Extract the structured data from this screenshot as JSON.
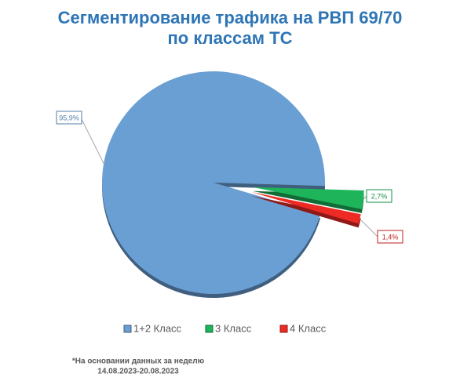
{
  "chart_data": {
    "type": "pie",
    "title": [
      "Сегментирование трафика на РВП 69/70",
      "по классам ТС"
    ],
    "categories": [
      "1+2 Класс",
      "3 Класс",
      "4 Класс"
    ],
    "values": [
      95.9,
      2.7,
      1.4
    ],
    "value_labels": [
      "95,9%",
      "2,7%",
      "1,4%"
    ],
    "colors": [
      "#6a9fd4",
      "#1db45a",
      "#ee2a24"
    ],
    "legend": "bottom",
    "footnote": [
      "*На основании данных за неделю",
      "14.08.2023-20.08.2023"
    ]
  }
}
